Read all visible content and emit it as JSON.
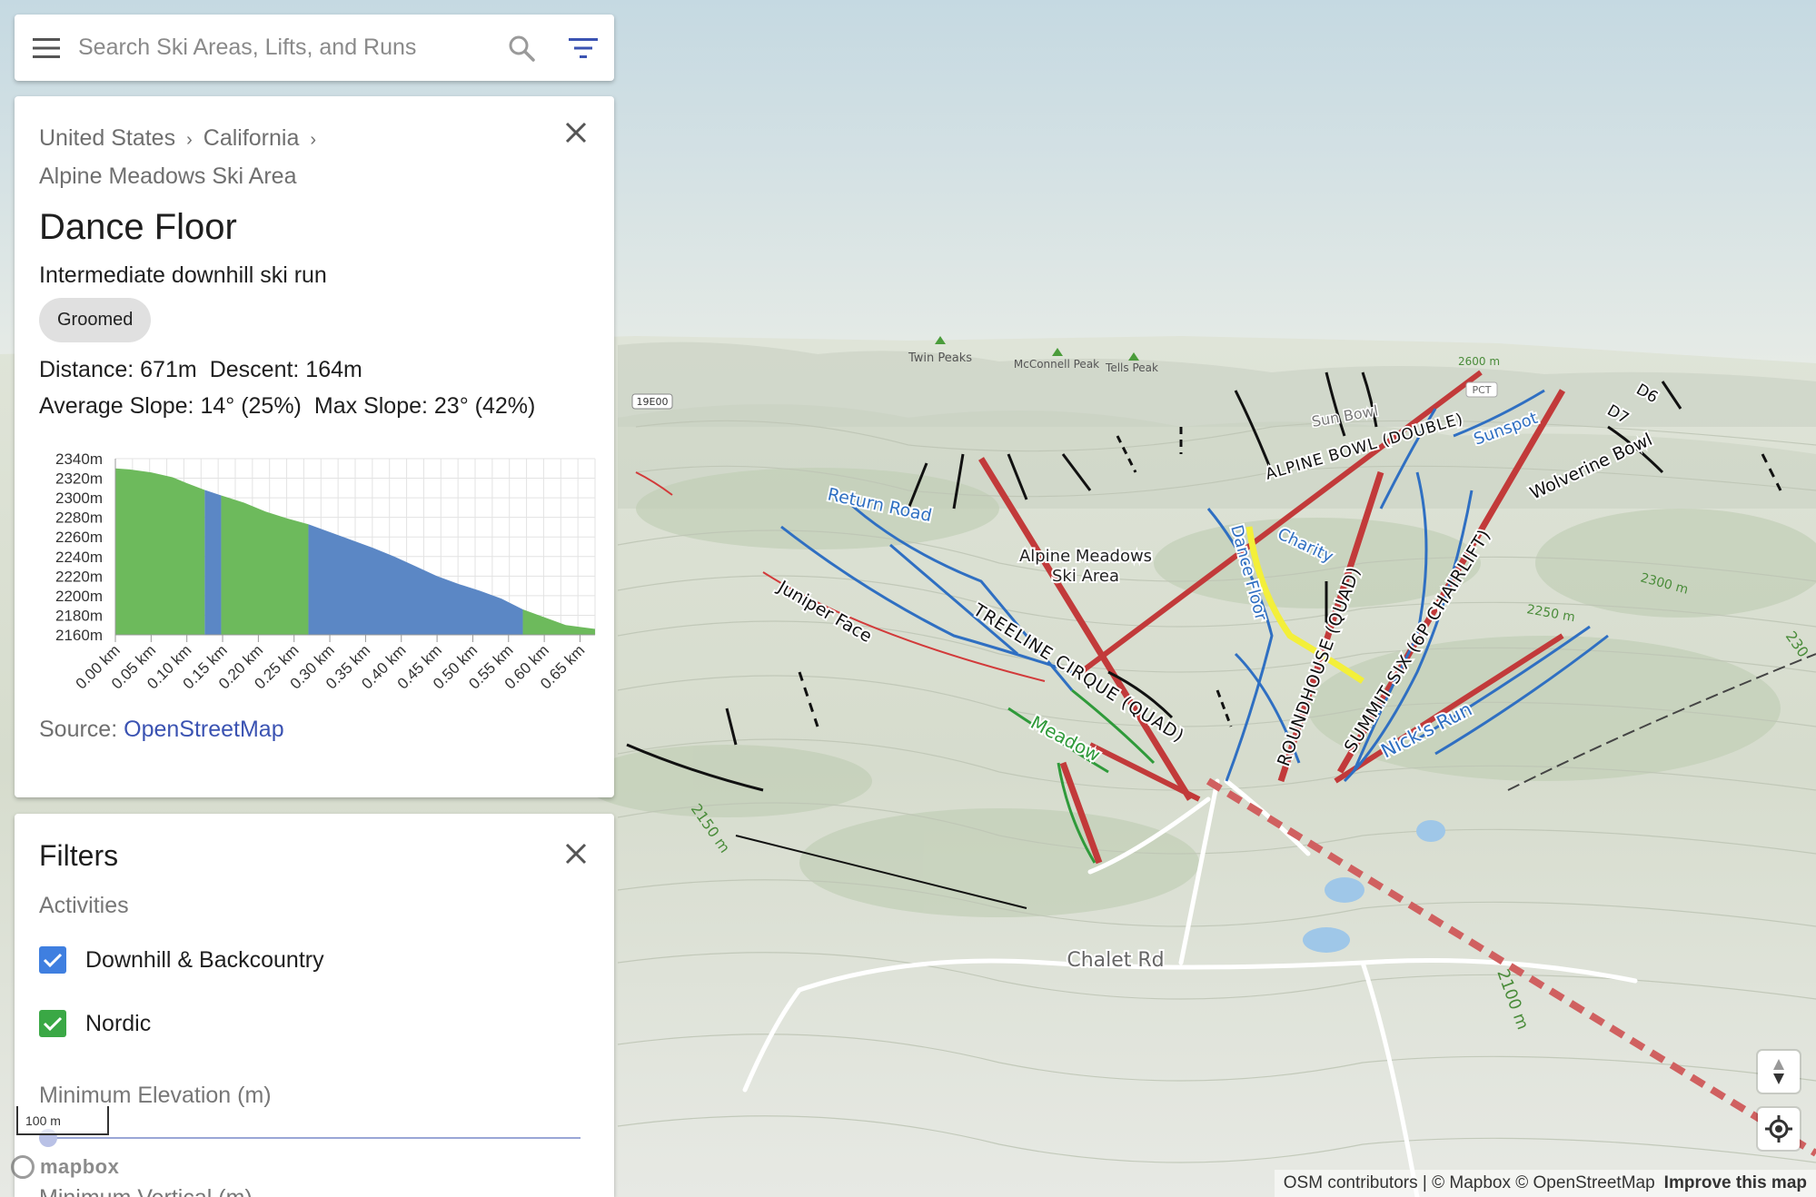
{
  "search": {
    "placeholder": "Search Ski Areas, Lifts, and Runs"
  },
  "icons": {
    "menu": "hamburger-icon",
    "search": "magnifier-icon",
    "filter": "filter-icon",
    "close": "close-icon",
    "compass": "compass-icon",
    "locate": "locate-icon"
  },
  "info": {
    "breadcrumb": [
      "United States",
      "California",
      "Alpine Meadows Ski Area"
    ],
    "title": "Dance Floor",
    "type": "Intermediate downhill ski run",
    "chip": "Groomed",
    "distance": "Distance: 671m",
    "descent": "Descent: 164m",
    "avg_slope": "Average Slope: 14° (25%)",
    "max_slope": "Max Slope: 23° (42%)",
    "source_label": "Source:",
    "source_link": "OpenStreetMap"
  },
  "chart_data": {
    "type": "area",
    "title": "",
    "xlabel": "",
    "ylabel": "",
    "x_ticks": [
      "0.00 km",
      "0.05 km",
      "0.10 km",
      "0.15 km",
      "0.20 km",
      "0.25 km",
      "0.30 km",
      "0.35 km",
      "0.40 km",
      "0.45 km",
      "0.50 km",
      "0.55 km",
      "0.60 km",
      "0.65 km"
    ],
    "y_ticks": [
      "2340m",
      "2320m",
      "2300m",
      "2280m",
      "2260m",
      "2240m",
      "2220m",
      "2200m",
      "2180m",
      "2160m"
    ],
    "xlim": [
      0,
      0.671
    ],
    "ylim": [
      2160,
      2340
    ],
    "x": [
      0,
      0.02,
      0.05,
      0.08,
      0.1,
      0.125,
      0.15,
      0.18,
      0.21,
      0.24,
      0.27,
      0.3,
      0.33,
      0.36,
      0.39,
      0.42,
      0.45,
      0.48,
      0.51,
      0.54,
      0.57,
      0.6,
      0.63,
      0.671
    ],
    "y": [
      2330,
      2329,
      2326,
      2321,
      2315,
      2308,
      2302,
      2295,
      2286,
      2279,
      2273,
      2265,
      2257,
      2249,
      2240,
      2230,
      2220,
      2212,
      2205,
      2197,
      2186,
      2178,
      2170,
      2166
    ],
    "segments": [
      {
        "from": 0.0,
        "to": 0.125,
        "color": "#6dba5c"
      },
      {
        "from": 0.125,
        "to": 0.148,
        "color": "#5b87c5"
      },
      {
        "from": 0.148,
        "to": 0.27,
        "color": "#6dba5c"
      },
      {
        "from": 0.27,
        "to": 0.57,
        "color": "#5b87c5"
      },
      {
        "from": 0.57,
        "to": 0.671,
        "color": "#6dba5c"
      }
    ],
    "grid": true
  },
  "filters": {
    "title": "Filters",
    "activities_label": "Activities",
    "downhill": "Downhill & Backcountry",
    "nordic": "Nordic",
    "downhill_checked": true,
    "nordic_checked": true,
    "downhill_color": "#3f7fe0",
    "nordic_color": "#3aa845",
    "min_elevation_label": "Minimum Elevation (m)",
    "min_elevation_value": 0,
    "vertical_label": "Minimum Vertical (m)"
  },
  "scale": "100 m",
  "mapbox_logo": "mapbox",
  "attribution": {
    "text": "OSM contributors | © Mapbox © OpenStreetMap",
    "improve": "Improve this map"
  },
  "map_labels": {
    "ski_area": [
      "Alpine Meadows",
      "Ski Area"
    ],
    "lifts": [
      "TREELINE CIRQUE (QUAD)",
      "ROUNDHOUSE (QUAD)",
      "SUMMIT SIX (6P CHAIRLIFT)",
      "ALPINE BOWL (DOUBLE)"
    ],
    "runs": [
      "Juniper Face",
      "Return Road",
      "Dance Floor",
      "Charity",
      "Sunspot",
      "Wolverine Bowl",
      "Nick's Run",
      "Meadow",
      "Sun Bowl",
      "D7",
      "D6"
    ],
    "peaks": [
      "Twin Peaks",
      "McConnell Peak",
      "Tells Peak"
    ],
    "roads": [
      "Chalet Rd",
      "19E00",
      "PCT"
    ],
    "contours": [
      "2600 m",
      "2300 m",
      "2250 m",
      "2100 m",
      "2150 m",
      "230"
    ],
    "colors": {
      "advanced": "#cc3b3b",
      "intermediate": "#2e6ec4",
      "easy": "#3a9c3a",
      "expert": "#111111",
      "sky": "#cfdde3"
    }
  }
}
